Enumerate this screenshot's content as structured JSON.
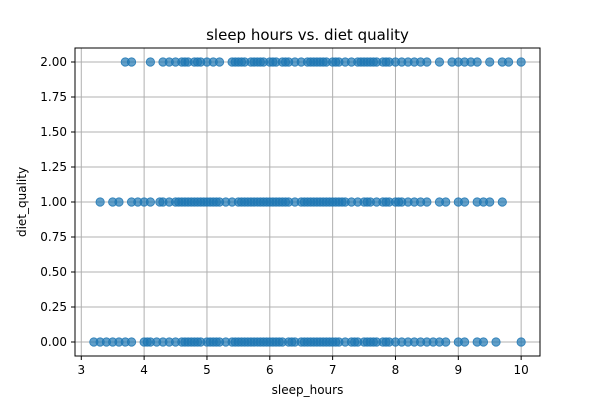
{
  "chart_data": {
    "type": "scatter",
    "title": "sleep hours vs. diet quality",
    "xlabel": "sleep_hours",
    "ylabel": "diet_quality",
    "xlim": [
      2.9,
      10.3
    ],
    "ylim": [
      -0.1,
      2.1
    ],
    "xticks": [
      3,
      4,
      5,
      6,
      7,
      8,
      9,
      10
    ],
    "yticks": [
      0.0,
      0.25,
      0.5,
      0.75,
      1.0,
      1.25,
      1.5,
      1.75,
      2.0
    ],
    "ytick_labels": [
      "0.00",
      "0.25",
      "0.50",
      "0.75",
      "1.00",
      "1.25",
      "1.50",
      "1.75",
      "2.00"
    ],
    "grid": true,
    "marker_color": "#1f77b4",
    "marker_alpha": 0.7,
    "series": [
      {
        "y": 2,
        "x": [
          3.7,
          3.8,
          4.1,
          4.3,
          4.4,
          4.5,
          4.6,
          4.65,
          4.7,
          4.8,
          4.85,
          4.9,
          5.0,
          5.1,
          5.2,
          5.4,
          5.45,
          5.5,
          5.55,
          5.6,
          5.7,
          5.75,
          5.8,
          5.85,
          5.9,
          6.0,
          6.05,
          6.1,
          6.2,
          6.25,
          6.3,
          6.4,
          6.5,
          6.6,
          6.65,
          6.7,
          6.75,
          6.8,
          6.85,
          6.9,
          7.0,
          7.05,
          7.1,
          7.2,
          7.3,
          7.4,
          7.45,
          7.5,
          7.55,
          7.6,
          7.65,
          7.7,
          7.8,
          7.85,
          7.9,
          8.0,
          8.1,
          8.2,
          8.3,
          8.4,
          8.5,
          8.7,
          8.9,
          9.0,
          9.1,
          9.2,
          9.3,
          9.5,
          9.7,
          9.8,
          10.0
        ]
      },
      {
        "y": 1,
        "x": [
          3.3,
          3.5,
          3.6,
          3.8,
          3.9,
          4.0,
          4.1,
          4.25,
          4.3,
          4.4,
          4.5,
          4.55,
          4.6,
          4.65,
          4.7,
          4.75,
          4.8,
          4.85,
          4.9,
          4.95,
          5.0,
          5.05,
          5.1,
          5.15,
          5.2,
          5.3,
          5.4,
          5.5,
          5.55,
          5.6,
          5.65,
          5.7,
          5.75,
          5.8,
          5.85,
          5.9,
          5.95,
          6.0,
          6.05,
          6.1,
          6.15,
          6.2,
          6.25,
          6.3,
          6.4,
          6.5,
          6.55,
          6.6,
          6.65,
          6.7,
          6.75,
          6.8,
          6.85,
          6.9,
          6.95,
          7.0,
          7.05,
          7.1,
          7.15,
          7.2,
          7.3,
          7.4,
          7.5,
          7.55,
          7.6,
          7.7,
          7.8,
          7.85,
          7.9,
          8.0,
          8.05,
          8.1,
          8.2,
          8.3,
          8.4,
          8.5,
          8.7,
          8.8,
          9.0,
          9.1,
          9.3,
          9.4,
          9.5,
          9.7
        ]
      },
      {
        "y": 0,
        "x": [
          3.2,
          3.3,
          3.4,
          3.5,
          3.6,
          3.7,
          3.8,
          4.0,
          4.05,
          4.1,
          4.2,
          4.3,
          4.4,
          4.5,
          4.6,
          4.65,
          4.7,
          4.75,
          4.8,
          4.85,
          4.9,
          5.0,
          5.05,
          5.1,
          5.15,
          5.2,
          5.3,
          5.4,
          5.45,
          5.5,
          5.55,
          5.6,
          5.65,
          5.7,
          5.75,
          5.8,
          5.85,
          5.9,
          5.95,
          6.0,
          6.05,
          6.1,
          6.15,
          6.2,
          6.3,
          6.35,
          6.4,
          6.5,
          6.55,
          6.6,
          6.65,
          6.7,
          6.75,
          6.8,
          6.85,
          6.9,
          6.95,
          7.0,
          7.05,
          7.1,
          7.2,
          7.3,
          7.35,
          7.4,
          7.5,
          7.55,
          7.6,
          7.65,
          7.7,
          7.8,
          7.85,
          7.9,
          8.0,
          8.1,
          8.2,
          8.3,
          8.4,
          8.5,
          8.6,
          8.7,
          8.8,
          9.0,
          9.1,
          9.3,
          9.4,
          9.6,
          10.0
        ]
      }
    ]
  }
}
